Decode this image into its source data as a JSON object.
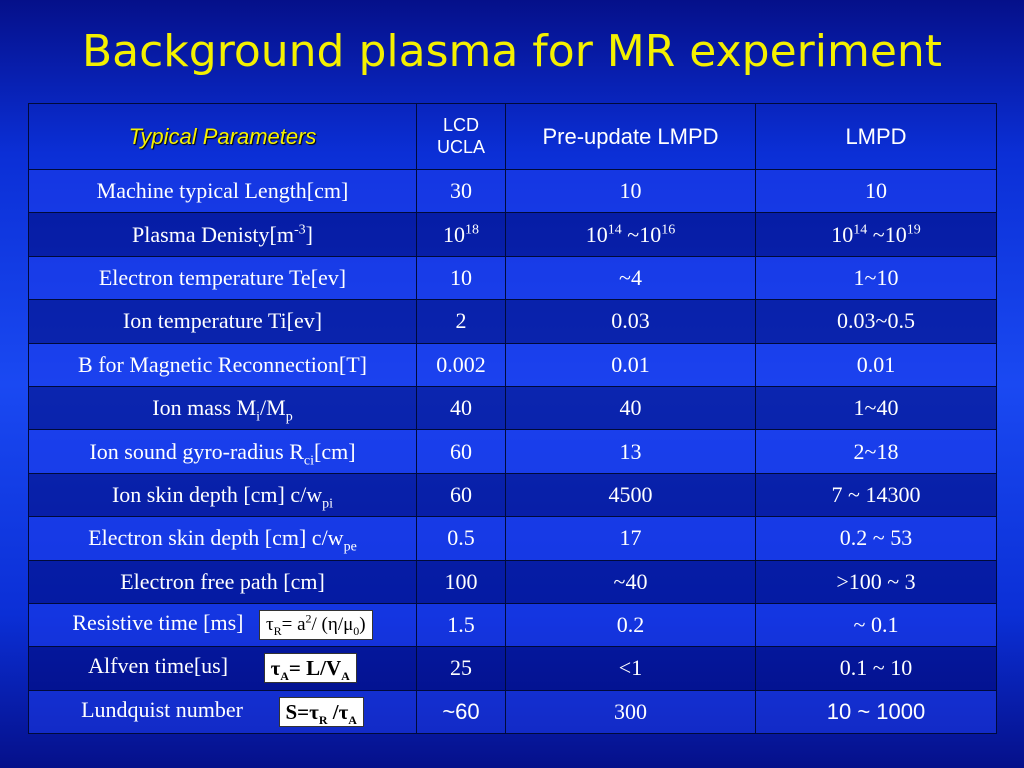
{
  "title": "Background plasma for MR experiment",
  "header": {
    "param": "Typical Parameters",
    "lcd_line1": "LCD",
    "lcd_line2": "UCLA",
    "pre": "Pre-update LMPD",
    "lmpd": "LMPD"
  },
  "rows": {
    "length": {
      "label": "Machine typical Length[cm]",
      "lcd": "30",
      "pre": "10",
      "lmpd": "10"
    },
    "density": {
      "label": "Plasma Denisty[m",
      "label_sup": "-3",
      "label_end": "]",
      "lcd_base": "10",
      "lcd_exp": "18",
      "pre_base1": "10",
      "pre_exp1": "14",
      "pre_mid": " ~10",
      "pre_exp2": "16",
      "lmpd_base1": "10",
      "lmpd_exp1": "14",
      "lmpd_mid": " ~10",
      "lmpd_exp2": "19"
    },
    "te": {
      "label": "Electron temperature Te[ev]",
      "lcd": "10",
      "pre": "~4",
      "lmpd": "1~10"
    },
    "ti": {
      "label": "Ion temperature Ti[ev]",
      "lcd": "2",
      "pre": "0.03",
      "lmpd": "0.03~0.5"
    },
    "b": {
      "label": "B for Magnetic Reconnection[T]",
      "lcd": "0.002",
      "pre": "0.01",
      "lmpd": "0.01"
    },
    "mass": {
      "label": "Ion mass M",
      "label_sub1": "i",
      "label_mid": "/M",
      "label_sub2": "p",
      "lcd": "40",
      "pre": "40",
      "lmpd": "1~40"
    },
    "gyro": {
      "label": "Ion sound gyro-radius R",
      "label_sub": "ci",
      "label_end": "[cm]",
      "lcd": "60",
      "pre": "13",
      "lmpd": "2~18"
    },
    "ion_skin": {
      "label": "Ion skin depth [cm] c/w",
      "label_sub": "pi",
      "lcd": "60",
      "pre": "4500",
      "lmpd": "7 ~ 14300"
    },
    "e_skin": {
      "label": "Electron skin depth [cm] c/w",
      "label_sub": "pe",
      "lcd": "0.5",
      "pre": "17",
      "lmpd": "0.2 ~ 53"
    },
    "free_path": {
      "label": "Electron free path [cm]",
      "lcd": "100",
      "pre": "~40",
      "lmpd": ">100 ~ 3"
    },
    "resistive": {
      "label": "Resistive time [ms]",
      "f_a": "τ",
      "f_sub": "R",
      "f_b": "= a",
      "f_sup": "2",
      "f_c": "/ (η/μ",
      "f_sub2": "0",
      "f_d": ")",
      "lcd": "1.5",
      "pre": "0.2",
      "lmpd": "~ 0.1"
    },
    "alfven": {
      "label": "Alfven time[us]",
      "f_a": "τ",
      "f_sub": "A",
      "f_b": "= L/V",
      "f_sub2": "A",
      "lcd": "25",
      "pre": "<1",
      "lmpd": "0.1 ~ 10"
    },
    "lundquist": {
      "label": "Lundquist number",
      "f_a": "S=τ",
      "f_sub": "R",
      "f_b": " /τ",
      "f_sub2": "A",
      "lcd": "~60",
      "pre": "300",
      "lmpd": "10 ~ 1000"
    }
  }
}
